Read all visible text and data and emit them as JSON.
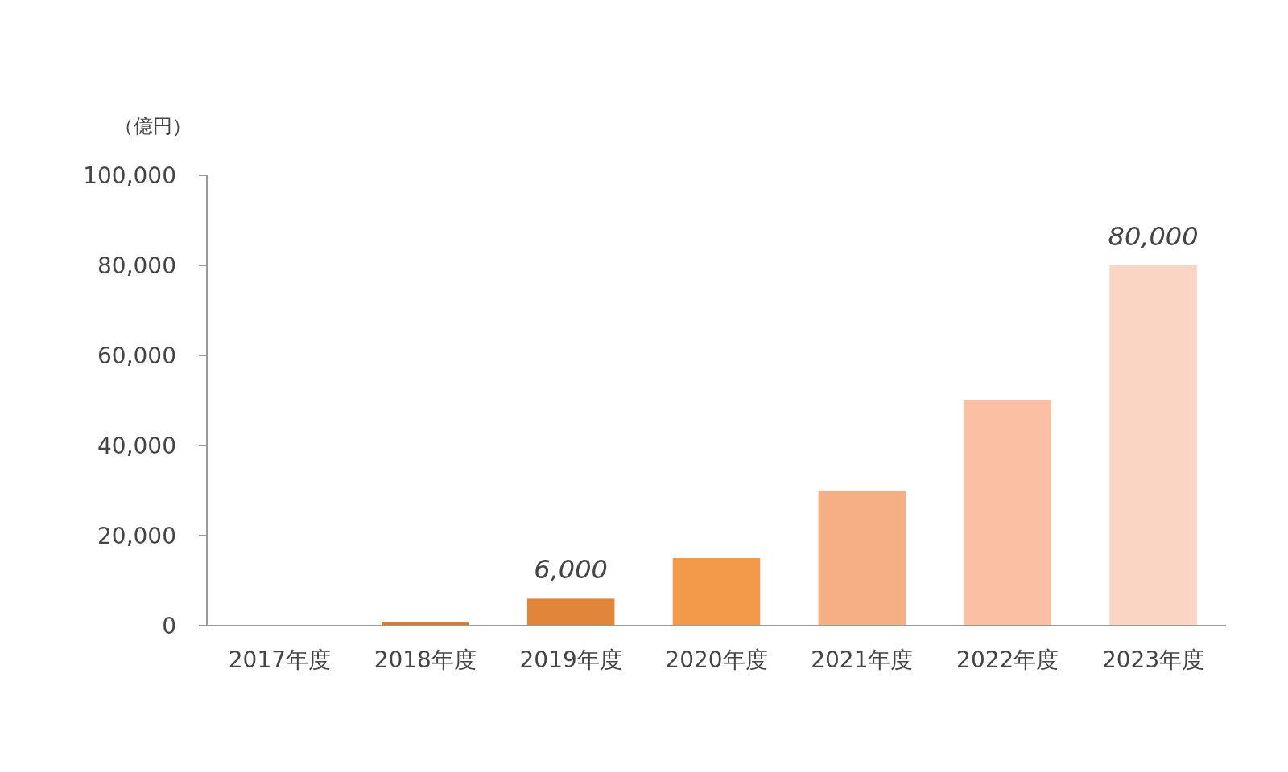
{
  "chart_data": {
    "type": "bar",
    "ylabel": "（億円）",
    "categories": [
      "2017年度",
      "2018年度",
      "2019年度",
      "2020年度",
      "2021年度",
      "2022年度",
      "2023年度"
    ],
    "values": [
      0,
      700,
      6000,
      15000,
      30000,
      50000,
      80000
    ],
    "colors": [
      "#d4702a",
      "#d9772b",
      "#e0853a",
      "#f39a4a",
      "#f6ae84",
      "#f9c0a3",
      "#fad5c3"
    ],
    "value_labels": [
      null,
      null,
      "6,000",
      null,
      null,
      null,
      "80,000"
    ],
    "ylim": [
      0,
      100000
    ],
    "yticks": [
      {
        "value": 0,
        "label": "0"
      },
      {
        "value": 20000,
        "label": "20,000"
      },
      {
        "value": 40000,
        "label": "40,000"
      },
      {
        "value": 60000,
        "label": "60,000"
      },
      {
        "value": 80000,
        "label": "80,000"
      },
      {
        "value": 100000,
        "label": "100,000"
      }
    ],
    "legend": false
  }
}
